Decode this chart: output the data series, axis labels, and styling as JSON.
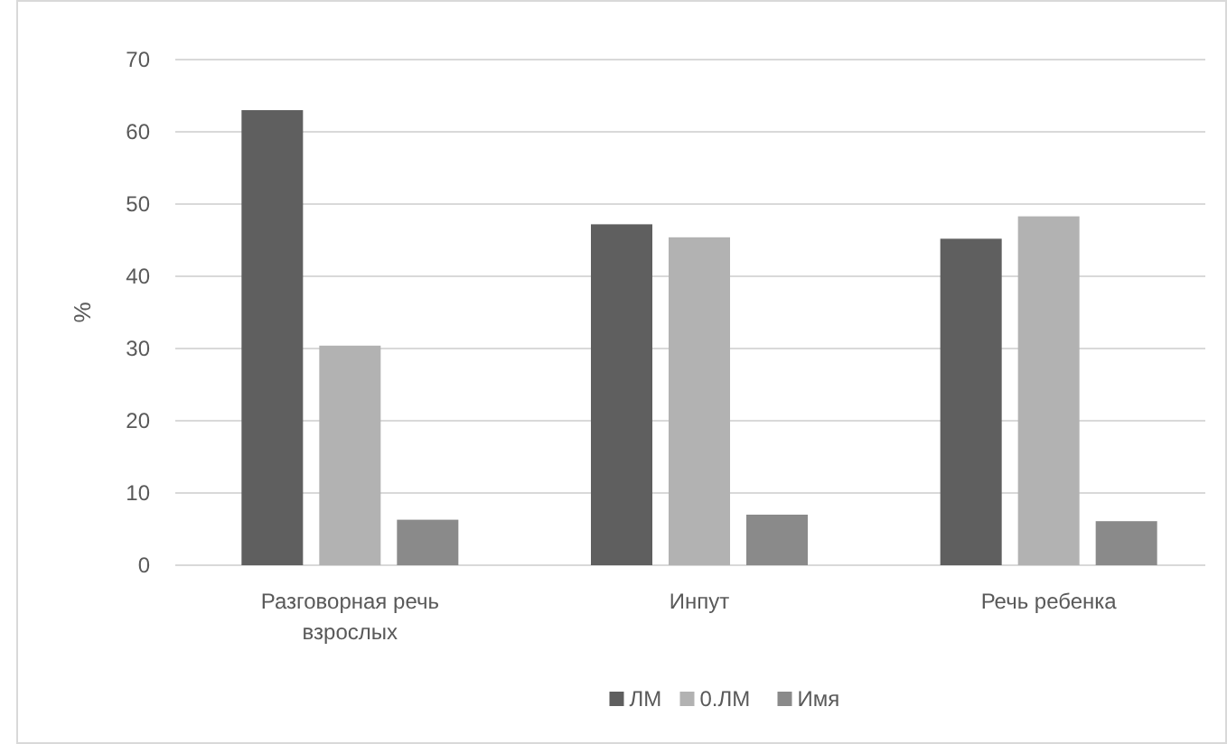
{
  "chart_data": {
    "type": "bar",
    "ylabel": "%",
    "categories": [
      "Разговорная речь взрослых",
      "Инпут",
      "Речь ребенка"
    ],
    "series": [
      {
        "name": "ЛМ",
        "color": "#5f5f5f",
        "values": [
          63,
          47.2,
          45.2
        ]
      },
      {
        "name": "0.ЛМ",
        "color": "#b2b2b2",
        "values": [
          30.4,
          45.4,
          48.3
        ]
      },
      {
        "name": "Имя",
        "color": "#8a8a8a",
        "values": [
          6.3,
          7,
          6.1
        ]
      }
    ],
    "ylim": [
      0,
      70
    ],
    "yticks": [
      0,
      10,
      20,
      30,
      40,
      50,
      60,
      70
    ],
    "grid": "y",
    "legend": "bottom"
  }
}
